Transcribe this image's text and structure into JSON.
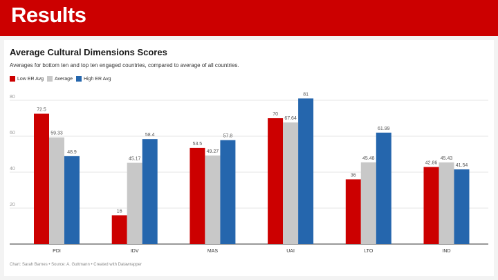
{
  "slide": {
    "title": "Results"
  },
  "chart_data": {
    "type": "bar",
    "title": "Average Cultural Dimensions Scores",
    "subtitle": "Averages for bottom ten and top ten engaged countries, compared to average of all countries.",
    "categories": [
      "PDI",
      "IDV",
      "MAS",
      "UAI",
      "LTO",
      "IND"
    ],
    "series": [
      {
        "name": "Low ER Avg",
        "color": "#cc0000",
        "values": [
          72.5,
          16,
          53.5,
          70,
          36,
          42.86
        ],
        "labels": [
          "72.5",
          "16",
          "53.5",
          "70",
          "36",
          "42.86"
        ]
      },
      {
        "name": "Average",
        "color": "#c8c8c8",
        "values": [
          59.33,
          45.17,
          49.27,
          67.64,
          45.48,
          45.43
        ],
        "labels": [
          "59.33",
          "45.17",
          "49.27",
          "67.64",
          "45.48",
          "45.43"
        ]
      },
      {
        "name": "High ER Avg",
        "color": "#2566ad",
        "values": [
          48.9,
          58.4,
          57.8,
          81,
          61.99,
          41.54
        ],
        "labels": [
          "48.9",
          "58.4",
          "57.8",
          "81",
          "61.99",
          "41.54"
        ]
      }
    ],
    "ylim": [
      0,
      80
    ],
    "yticks": [
      20,
      40,
      60,
      80
    ],
    "grid": true,
    "legend": "top-left",
    "footer": "Chart: Sarah Barnes • Source: A. Guttmann • Created with Datawrapper"
  }
}
